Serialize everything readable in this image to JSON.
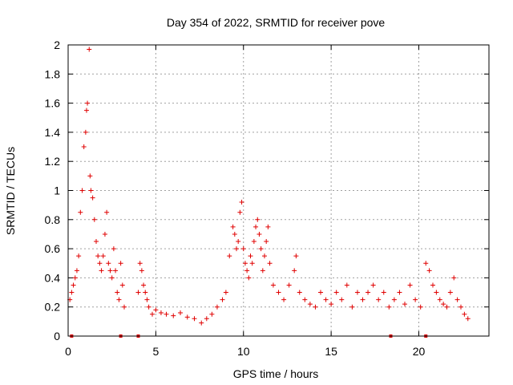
{
  "chart_data": {
    "type": "scatter",
    "title": "Day 354 of 2022, SRMTID for receiver pove",
    "xlabel": "GPS time / hours",
    "ylabel": "SRMTID / TECUs",
    "xlim": [
      0,
      24
    ],
    "ylim": [
      0,
      2
    ],
    "xticks": [
      0,
      5,
      10,
      15,
      20
    ],
    "yticks": [
      0,
      0.2,
      0.4,
      0.6,
      0.8,
      1,
      1.2,
      1.4,
      1.6,
      1.8,
      2
    ],
    "ytick_labels": [
      "0",
      "0.2",
      "0.4",
      "0.6",
      "0.8",
      "1",
      "1.2",
      "1.4",
      "1.6",
      "1.8",
      "2"
    ],
    "grid": true,
    "marker": "+",
    "color": "#e00000",
    "series": [
      {
        "name": "SRMTID",
        "x": [
          0.1,
          0.2,
          0.3,
          0.4,
          0.5,
          0.6,
          0.7,
          0.8,
          0.9,
          1.0,
          1.05,
          1.1,
          1.2,
          1.25,
          1.3,
          1.4,
          1.5,
          1.6,
          1.7,
          1.8,
          1.9,
          2.0,
          2.1,
          2.2,
          2.3,
          2.4,
          2.5,
          2.6,
          2.7,
          2.8,
          2.9,
          3.0,
          3.1,
          3.2,
          4.0,
          4.1,
          4.2,
          4.3,
          4.4,
          4.5,
          4.6,
          4.8,
          5.0,
          5.3,
          5.6,
          6.0,
          6.4,
          6.8,
          7.2,
          7.6,
          7.9,
          8.2,
          8.5,
          8.8,
          9.0,
          9.2,
          9.4,
          9.5,
          9.6,
          9.7,
          9.8,
          9.9,
          10.0,
          10.1,
          10.2,
          10.3,
          10.4,
          10.5,
          10.6,
          10.7,
          10.8,
          10.9,
          11.0,
          11.1,
          11.2,
          11.3,
          11.4,
          11.5,
          11.7,
          12.0,
          12.3,
          12.6,
          12.9,
          13.0,
          13.2,
          13.5,
          13.8,
          14.1,
          14.4,
          14.7,
          15.0,
          15.3,
          15.6,
          15.9,
          16.2,
          16.5,
          16.8,
          17.1,
          17.4,
          17.7,
          18.0,
          18.3,
          18.6,
          18.9,
          19.2,
          19.5,
          19.8,
          20.1,
          20.4,
          20.6,
          20.8,
          21.0,
          21.2,
          21.4,
          21.6,
          21.8,
          22.0,
          22.2,
          22.4,
          22.6,
          22.8
        ],
        "y": [
          0.25,
          0.3,
          0.35,
          0.4,
          0.45,
          0.55,
          0.85,
          1.0,
          1.3,
          1.4,
          1.55,
          1.6,
          1.97,
          1.1,
          1.0,
          0.95,
          0.8,
          0.65,
          0.55,
          0.5,
          0.45,
          0.55,
          0.7,
          0.85,
          0.5,
          0.45,
          0.4,
          0.6,
          0.45,
          0.3,
          0.25,
          0.5,
          0.35,
          0.2,
          0.3,
          0.5,
          0.45,
          0.35,
          0.3,
          0.25,
          0.2,
          0.15,
          0.18,
          0.16,
          0.15,
          0.14,
          0.16,
          0.13,
          0.12,
          0.09,
          0.12,
          0.15,
          0.2,
          0.25,
          0.3,
          0.55,
          0.75,
          0.7,
          0.6,
          0.65,
          0.85,
          0.92,
          0.6,
          0.5,
          0.45,
          0.4,
          0.55,
          0.5,
          0.65,
          0.75,
          0.8,
          0.7,
          0.6,
          0.45,
          0.55,
          0.65,
          0.75,
          0.5,
          0.35,
          0.3,
          0.25,
          0.35,
          0.45,
          0.55,
          0.3,
          0.25,
          0.22,
          0.2,
          0.3,
          0.25,
          0.22,
          0.3,
          0.25,
          0.35,
          0.2,
          0.3,
          0.25,
          0.3,
          0.35,
          0.25,
          0.3,
          0.2,
          0.25,
          0.3,
          0.22,
          0.35,
          0.25,
          0.2,
          0.5,
          0.45,
          0.35,
          0.3,
          0.25,
          0.22,
          0.2,
          0.3,
          0.4,
          0.25,
          0.2,
          0.15,
          0.12
        ]
      }
    ],
    "baseline_markers": {
      "x": [
        0.2,
        3.0,
        4.0,
        18.4,
        20.4
      ],
      "y": [
        0,
        0,
        0,
        0,
        0
      ]
    }
  }
}
